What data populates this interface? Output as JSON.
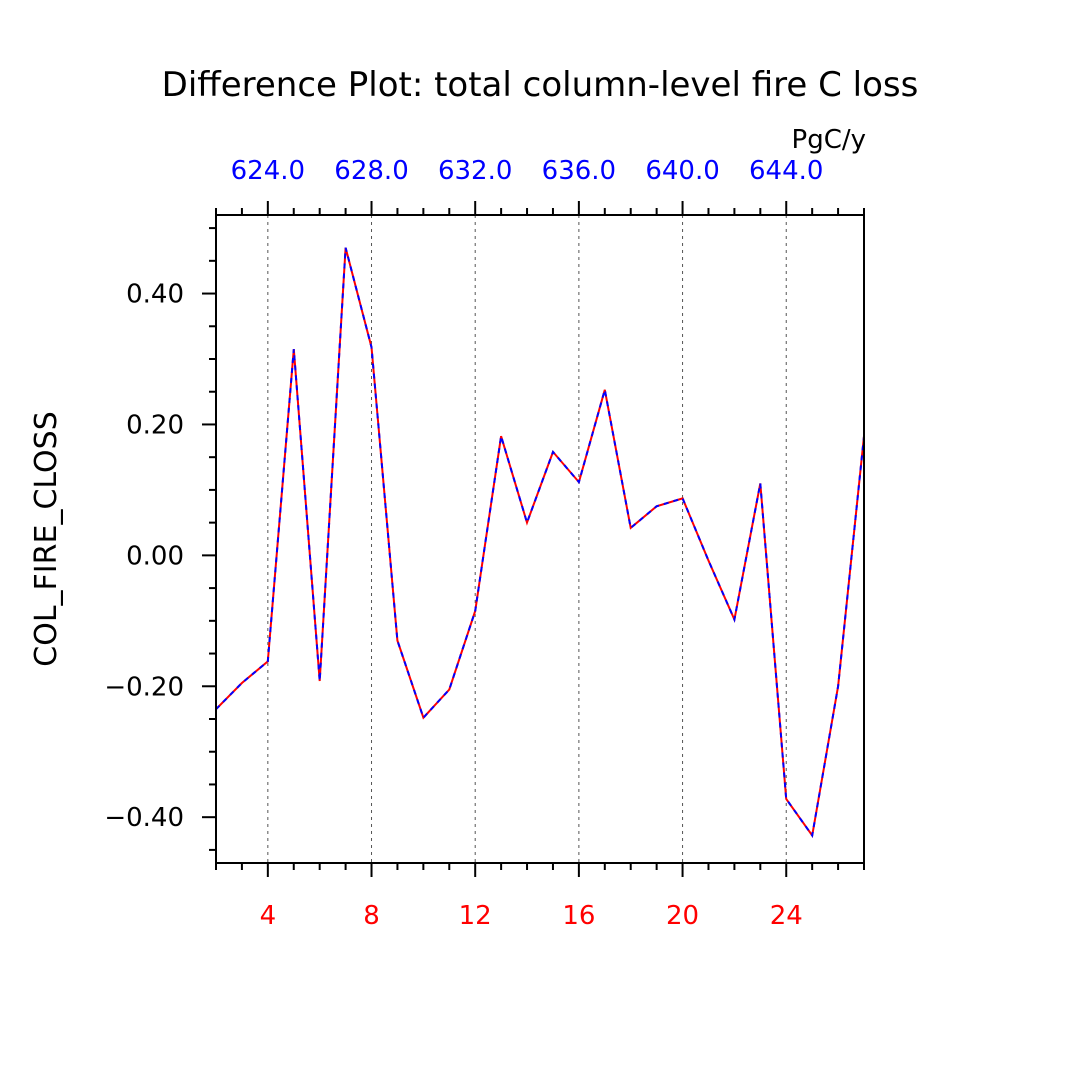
{
  "chart_data": {
    "type": "line",
    "title": "Difference Plot: total column-level fire C loss",
    "units": "PgC/y",
    "ylabel": "COL_FIRE_CLOSS",
    "xlabel": "",
    "xlim": [
      2,
      27
    ],
    "ylim": [
      -0.47,
      0.52
    ],
    "x_ticks": [
      4,
      8,
      12,
      16,
      20,
      24
    ],
    "x_tick_labels": [
      "4",
      "8",
      "12",
      "16",
      "20",
      "24"
    ],
    "y_ticks": [
      -0.4,
      -0.2,
      0.0,
      0.2,
      0.4
    ],
    "y_tick_labels": [
      "−0.40",
      "−0.20",
      "0.00",
      "0.20",
      "0.40"
    ],
    "top_axis_tick_labels": [
      "624.0",
      "628.0",
      "632.0",
      "636.0",
      "640.0",
      "644.0"
    ],
    "grid": "vertical dashed lines at major x ticks",
    "series": [
      {
        "color": "#ff0000",
        "style": "solid",
        "x": [
          2,
          3,
          4,
          5,
          6,
          7,
          8,
          9,
          10,
          11,
          12,
          13,
          14,
          15,
          16,
          17,
          18,
          19,
          20,
          21,
          22,
          23,
          24,
          25,
          26,
          27
        ],
        "values": [
          -0.235,
          -0.195,
          -0.162,
          0.315,
          -0.192,
          0.47,
          0.318,
          -0.13,
          -0.248,
          -0.205,
          -0.085,
          0.182,
          0.05,
          0.158,
          0.112,
          0.253,
          0.042,
          0.075,
          0.087,
          -0.008,
          -0.098,
          0.11,
          -0.372,
          -0.428,
          -0.2,
          0.182
        ]
      },
      {
        "color": "#0000ff",
        "style": "dashed",
        "x": [
          2,
          3,
          4,
          5,
          6,
          7,
          8,
          9,
          10,
          11,
          12,
          13,
          14,
          15,
          16,
          17,
          18,
          19,
          20,
          21,
          22,
          23,
          24,
          25,
          26,
          27
        ],
        "values": [
          -0.235,
          -0.195,
          -0.162,
          0.315,
          -0.192,
          0.47,
          0.318,
          -0.13,
          -0.248,
          -0.205,
          -0.085,
          0.182,
          0.05,
          0.158,
          0.112,
          0.253,
          0.042,
          0.075,
          0.087,
          -0.008,
          -0.098,
          0.11,
          -0.372,
          -0.428,
          -0.2,
          0.182
        ]
      }
    ]
  }
}
